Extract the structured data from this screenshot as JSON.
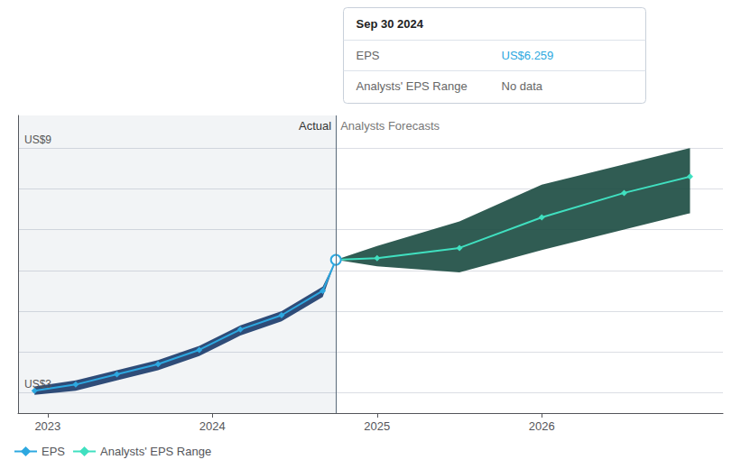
{
  "chart_data": {
    "type": "line",
    "xlim": [
      2022.82,
      2027.1
    ],
    "xticks": [
      2023,
      2024,
      2025,
      2026
    ],
    "ylim": [
      2.5,
      9.8
    ],
    "yticks": [
      3,
      4,
      5,
      6,
      7,
      8,
      9
    ],
    "grid": true,
    "tick_labels": "x",
    "legend": "lower left",
    "annotations": [
      {
        "text": "US$9",
        "y": 9
      },
      {
        "text": "US$3",
        "y": 3
      }
    ],
    "divider": {
      "x": 2024.75,
      "left_label": "Actual",
      "right_label": "Analysts Forecasts"
    },
    "series": [
      {
        "name": "EPS",
        "color": "#2da8e0",
        "marker": "diamond",
        "x": [
          2022.92,
          2023.17,
          2023.42,
          2023.67,
          2023.92,
          2024.17,
          2024.42,
          2024.67,
          2024.75
        ],
        "values": [
          3.05,
          3.2,
          3.45,
          3.7,
          4.05,
          4.55,
          4.9,
          5.5,
          6.259
        ],
        "band_upper": [
          3.15,
          3.3,
          3.55,
          3.8,
          4.15,
          4.65,
          5.0,
          5.6,
          6.259
        ],
        "band_lower": [
          2.95,
          3.05,
          3.3,
          3.55,
          3.9,
          4.4,
          4.75,
          5.35,
          6.259
        ],
        "band_color": "#1a3a6a"
      },
      {
        "name": "Analysts' EPS Range",
        "color": "#40e0c0",
        "marker": "diamond",
        "x": [
          2024.75,
          2025.0,
          2025.5,
          2026.0,
          2026.5,
          2026.9
        ],
        "values": [
          6.259,
          6.3,
          6.55,
          7.3,
          7.9,
          8.3
        ],
        "band_upper": [
          6.259,
          6.6,
          7.2,
          8.1,
          8.6,
          9.0
        ],
        "band_lower": [
          6.259,
          6.1,
          5.95,
          6.5,
          7.0,
          7.4
        ],
        "band_color": "#1a4a40"
      }
    ],
    "info_box": {
      "title": "Sep 30 2024",
      "rows": [
        {
          "label": "EPS",
          "value": "US$6.259",
          "color": "#2da8e0"
        },
        {
          "label": "Analysts' EPS Range",
          "value": "No data"
        }
      ]
    }
  }
}
